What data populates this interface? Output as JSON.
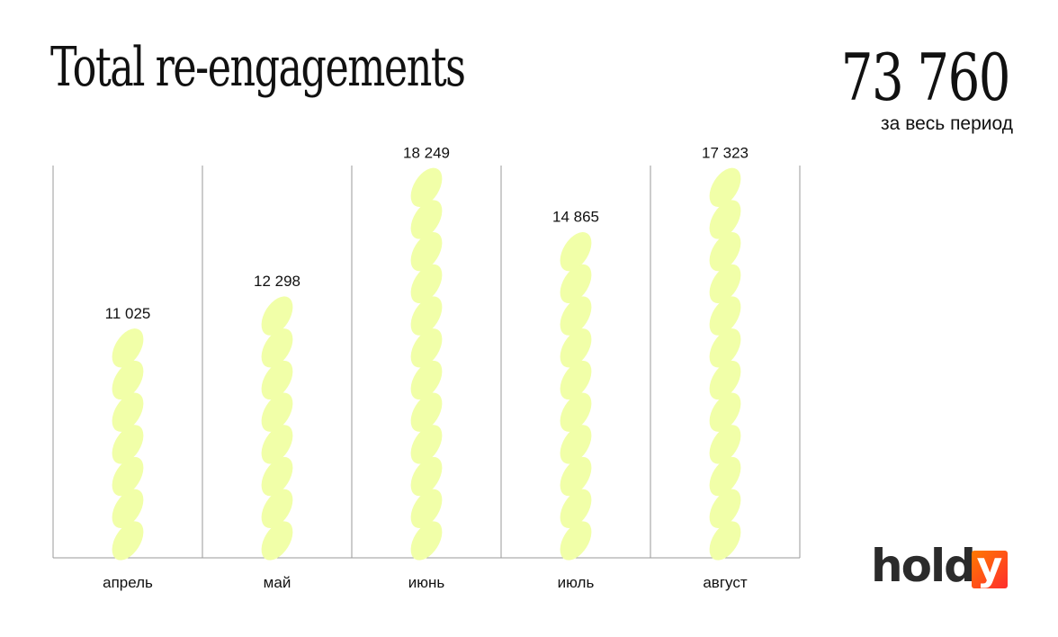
{
  "header": {
    "title": "Total re-engagements",
    "total_value": "73 760",
    "total_caption": "за весь период"
  },
  "brand": {
    "logo_text": "hold",
    "logo_letter": "y",
    "logo_colors": [
      "#ff7a00",
      "#ff2d2d"
    ]
  },
  "colors": {
    "mark_fill": "#f1ffa8",
    "grid": "#9a9a9a",
    "text": "#111111"
  },
  "chart_data": {
    "type": "bar",
    "categories": [
      "апрель",
      "май",
      "июнь",
      "июль",
      "август"
    ],
    "values": [
      11025,
      12298,
      18249,
      14865,
      17323
    ],
    "value_labels": [
      "11 025",
      "12 298",
      "18 249",
      "14 865",
      "17 323"
    ],
    "grid": "vertical separators",
    "mark_style": "stacked leaf shapes",
    "ylim": [
      0,
      20000
    ]
  }
}
